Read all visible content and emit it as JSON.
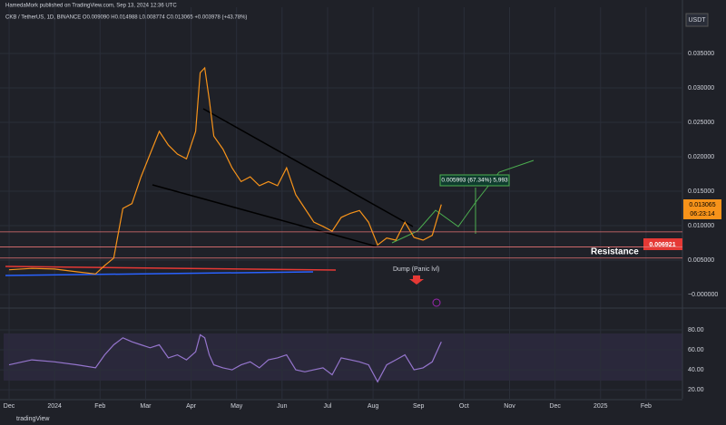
{
  "header": {
    "publisher": "HamedaMork published on TradingView.com, Sep 13, 2024 12:36 UTC",
    "symbol": "CKB / TetherUS, 1D, BINANCE  O0.009090 H0.014988 L0.008774 C0.013065 +0.003978 (+43.78%)",
    "currency": "USDT",
    "brand": "tradingView"
  },
  "annotations": {
    "resistance": "Resistance",
    "dump": "Dump (Panic lvl)",
    "measure": "0.005993 (67.34%) 5,993",
    "last_price": "0.013065",
    "countdown": "06:23:14",
    "resistance_price": "0.006921"
  },
  "chart_data": [
    {
      "type": "line",
      "color": "#f7931a",
      "x": [
        0,
        0.5,
        1,
        1.5,
        1.9,
        2.1,
        2.3,
        2.5,
        2.7,
        2.9,
        3.1,
        3.3,
        3.5,
        3.7,
        3.9,
        4.1,
        4.2,
        4.3,
        4.4,
        4.5,
        4.7,
        4.9,
        5.1,
        5.3,
        5.5,
        5.7,
        5.9,
        6.1,
        6.3,
        6.5,
        6.7,
        6.9,
        7.1,
        7.3,
        7.5,
        7.7,
        7.9,
        8.1,
        8.3,
        8.5,
        8.7,
        8.9,
        9.1,
        9.3,
        9.5
      ],
      "values": [
        0.0036,
        0.0038,
        0.0037,
        0.0033,
        0.003,
        0.0042,
        0.0053,
        0.0125,
        0.0132,
        0.0171,
        0.0204,
        0.0237,
        0.0217,
        0.0204,
        0.0197,
        0.0237,
        0.0322,
        0.0329,
        0.0283,
        0.023,
        0.0211,
        0.0184,
        0.0164,
        0.0171,
        0.0158,
        0.0164,
        0.0158,
        0.0184,
        0.0145,
        0.0125,
        0.0105,
        0.0099,
        0.0092,
        0.0112,
        0.0118,
        0.0122,
        0.0105,
        0.0072,
        0.0082,
        0.0079,
        0.0105,
        0.0083,
        0.0079,
        0.0086,
        0.013065
      ],
      "levels": [
        0.0091,
        0.006921,
        0.0053
      ],
      "xlim": [
        -0.2,
        14.8
      ],
      "xticks": [
        {
          "value": 0,
          "label": "Dec"
        },
        {
          "value": 1,
          "label": "2024"
        },
        {
          "value": 2,
          "label": "Feb"
        },
        {
          "value": 3,
          "label": "Mar"
        },
        {
          "value": 4,
          "label": "Apr"
        },
        {
          "value": 5,
          "label": "May"
        },
        {
          "value": 6,
          "label": "Jun"
        },
        {
          "value": 7,
          "label": "Jul"
        },
        {
          "value": 8,
          "label": "Aug"
        },
        {
          "value": 9,
          "label": "Sep"
        },
        {
          "value": 10,
          "label": "Oct"
        },
        {
          "value": 11,
          "label": "Nov"
        },
        {
          "value": 12,
          "label": "Dec"
        },
        {
          "value": 13,
          "label": "2025"
        },
        {
          "value": 14,
          "label": "Feb"
        }
      ],
      "ylim": [
        -0.0017,
        0.0417
      ],
      "yticks": [
        {
          "value": 0,
          "label": "−0.000000"
        },
        {
          "value": 0.005,
          "label": "0.005000"
        },
        {
          "value": 0.01,
          "label": "0.010000"
        },
        {
          "value": 0.015,
          "label": "0.015000"
        },
        {
          "value": 0.02,
          "label": "0.020000"
        },
        {
          "value": 0.025,
          "label": "0.025000"
        },
        {
          "value": 0.03,
          "label": "0.030000"
        },
        {
          "value": 0.035,
          "label": "0.035000"
        }
      ],
      "grid": true
    },
    {
      "type": "line",
      "color": "#9575cd",
      "x": [
        0,
        0.5,
        1,
        1.5,
        1.9,
        2.1,
        2.3,
        2.5,
        2.7,
        2.9,
        3.1,
        3.3,
        3.5,
        3.7,
        3.9,
        4.1,
        4.2,
        4.3,
        4.4,
        4.5,
        4.7,
        4.9,
        5.1,
        5.3,
        5.5,
        5.7,
        5.9,
        6.1,
        6.3,
        6.5,
        6.7,
        6.9,
        7.1,
        7.3,
        7.5,
        7.7,
        7.9,
        8.1,
        8.3,
        8.5,
        8.7,
        8.9,
        9.1,
        9.3,
        9.5
      ],
      "values": [
        45,
        50,
        48,
        45,
        42,
        55,
        65,
        72,
        68,
        65,
        62,
        65,
        52,
        55,
        50,
        58,
        75,
        72,
        55,
        45,
        42,
        40,
        45,
        48,
        42,
        50,
        52,
        55,
        40,
        38,
        40,
        42,
        35,
        52,
        50,
        48,
        45,
        28,
        45,
        50,
        55,
        40,
        42,
        48,
        68
      ],
      "xlim": [
        -0.2,
        14.8
      ],
      "ylim": [
        11,
        100
      ],
      "yticks": [
        {
          "value": 20,
          "label": "20.00"
        },
        {
          "value": 40,
          "label": "40.00"
        },
        {
          "value": 60,
          "label": "60.00"
        },
        {
          "value": 80,
          "label": "80.00"
        }
      ],
      "grid": true
    }
  ]
}
